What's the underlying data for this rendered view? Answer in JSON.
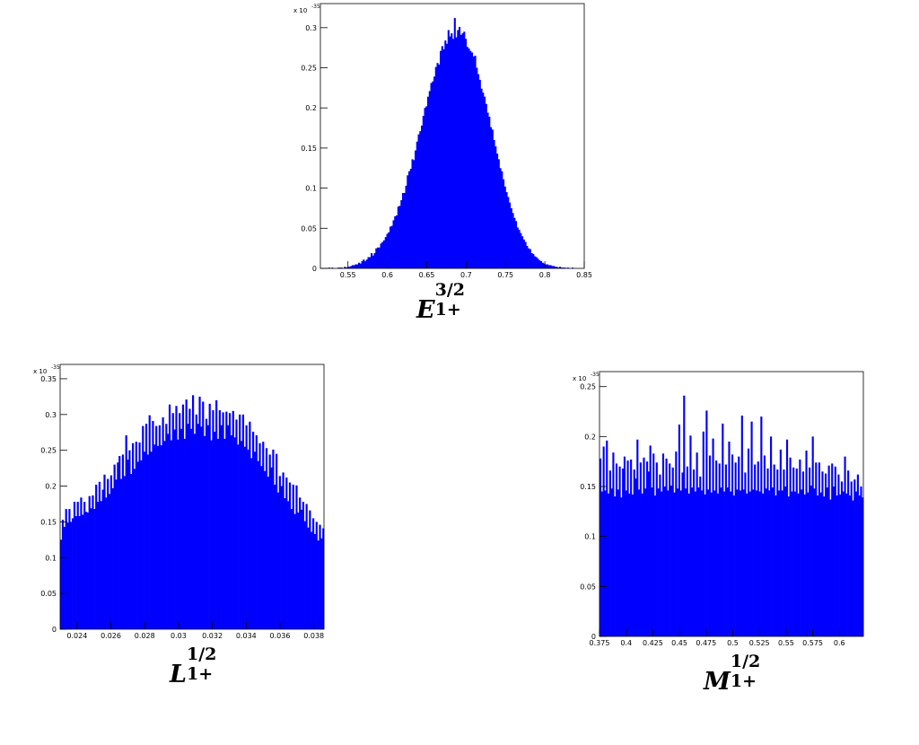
{
  "chart_data": [
    {
      "type": "bar",
      "multiplier": "x 10",
      "multiplier_exp": "-35",
      "caption": {
        "base": "E",
        "sup": "3/2",
        "sub": "1+"
      },
      "xlim": [
        0.515,
        0.85
      ],
      "ylim": [
        0,
        0.33
      ],
      "x_ticks": [
        "0.55",
        "0.6",
        "0.65",
        "0.7",
        "0.75",
        "0.8",
        "0.85"
      ],
      "y_ticks": [
        "0",
        "0.05",
        "0.1",
        "0.15",
        "0.2",
        "0.25",
        "0.3"
      ],
      "values": [
        0.0,
        0.0,
        0.0,
        0.0,
        0.0,
        0.001,
        0.0,
        0.001,
        0.0,
        0.0,
        0.0,
        0.001,
        0.001,
        0.001,
        0.0,
        0.002,
        0.001,
        0.002,
        0.002,
        0.003,
        0.004,
        0.004,
        0.005,
        0.005,
        0.007,
        0.006,
        0.009,
        0.011,
        0.009,
        0.011,
        0.014,
        0.014,
        0.019,
        0.016,
        0.019,
        0.025,
        0.026,
        0.026,
        0.031,
        0.033,
        0.035,
        0.039,
        0.043,
        0.045,
        0.052,
        0.053,
        0.06,
        0.065,
        0.066,
        0.077,
        0.078,
        0.085,
        0.094,
        0.094,
        0.103,
        0.116,
        0.121,
        0.124,
        0.136,
        0.135,
        0.147,
        0.158,
        0.167,
        0.171,
        0.178,
        0.19,
        0.2,
        0.202,
        0.214,
        0.221,
        0.231,
        0.233,
        0.239,
        0.251,
        0.256,
        0.254,
        0.271,
        0.277,
        0.273,
        0.284,
        0.28,
        0.297,
        0.289,
        0.293,
        0.286,
        0.312,
        0.288,
        0.297,
        0.301,
        0.291,
        0.293,
        0.295,
        0.286,
        0.276,
        0.274,
        0.271,
        0.269,
        0.264,
        0.265,
        0.25,
        0.242,
        0.235,
        0.224,
        0.219,
        0.214,
        0.205,
        0.194,
        0.189,
        0.176,
        0.173,
        0.16,
        0.152,
        0.143,
        0.136,
        0.125,
        0.121,
        0.111,
        0.102,
        0.095,
        0.089,
        0.082,
        0.075,
        0.069,
        0.063,
        0.059,
        0.051,
        0.048,
        0.044,
        0.04,
        0.036,
        0.033,
        0.028,
        0.025,
        0.024,
        0.019,
        0.018,
        0.015,
        0.014,
        0.012,
        0.01,
        0.009,
        0.007,
        0.006,
        0.005,
        0.005,
        0.004,
        0.004,
        0.003,
        0.003,
        0.002,
        0.002,
        0.001,
        0.002,
        0.001,
        0.001,
        0.001,
        0.0,
        0.001,
        0.0,
        0.0,
        0.001,
        0.0,
        0.0,
        0.0,
        0.0,
        0.0,
        0.0,
        0.0
      ]
    },
    {
      "type": "bar",
      "multiplier": "x 10",
      "multiplier_exp": "-35",
      "caption": {
        "base": "L",
        "sup": "1/2",
        "sub": "1+"
      },
      "xlim": [
        0.023,
        0.0386
      ],
      "ylim": [
        0,
        0.37
      ],
      "x_ticks": [
        "0.024",
        "0.026",
        "0.028",
        "0.03",
        "0.032",
        "0.034",
        "0.036",
        "0.038"
      ],
      "y_ticks": [
        "0",
        "0.05",
        "0.1",
        "0.15",
        "0.2",
        "0.25",
        "0.3",
        "0.35"
      ],
      "values": [
        0.125,
        0.153,
        0.143,
        0.168,
        0.149,
        0.168,
        0.15,
        0.155,
        0.178,
        0.158,
        0.178,
        0.158,
        0.184,
        0.16,
        0.178,
        0.164,
        0.163,
        0.186,
        0.169,
        0.187,
        0.168,
        0.202,
        0.178,
        0.206,
        0.179,
        0.195,
        0.216,
        0.184,
        0.21,
        0.189,
        0.215,
        0.197,
        0.23,
        0.209,
        0.233,
        0.242,
        0.21,
        0.244,
        0.214,
        0.271,
        0.237,
        0.25,
        0.217,
        0.26,
        0.224,
        0.262,
        0.234,
        0.261,
        0.236,
        0.284,
        0.248,
        0.287,
        0.244,
        0.299,
        0.248,
        0.291,
        0.258,
        0.284,
        0.256,
        0.285,
        0.257,
        0.296,
        0.263,
        0.287,
        0.273,
        0.314,
        0.264,
        0.302,
        0.279,
        0.312,
        0.265,
        0.302,
        0.28,
        0.314,
        0.266,
        0.321,
        0.287,
        0.308,
        0.28,
        0.327,
        0.273,
        0.3,
        0.287,
        0.325,
        0.283,
        0.318,
        0.27,
        0.294,
        0.285,
        0.315,
        0.264,
        0.306,
        0.276,
        0.32,
        0.266,
        0.306,
        0.285,
        0.303,
        0.266,
        0.304,
        0.285,
        0.302,
        0.271,
        0.305,
        0.268,
        0.293,
        0.258,
        0.3,
        0.263,
        0.3,
        0.255,
        0.285,
        0.251,
        0.29,
        0.239,
        0.276,
        0.248,
        0.271,
        0.235,
        0.26,
        0.228,
        0.262,
        0.221,
        0.253,
        0.213,
        0.244,
        0.226,
        0.251,
        0.202,
        0.245,
        0.191,
        0.214,
        0.2,
        0.219,
        0.183,
        0.212,
        0.179,
        0.205,
        0.168,
        0.202,
        0.161,
        0.201,
        0.163,
        0.184,
        0.167,
        0.178,
        0.151,
        0.175,
        0.142,
        0.166,
        0.136,
        0.155,
        0.133,
        0.15,
        0.124,
        0.146,
        0.127,
        0.141
      ]
    },
    {
      "type": "bar",
      "multiplier": "x 10",
      "multiplier_exp": "-35",
      "caption": {
        "base": "M",
        "sup": "1/2",
        "sub": "1+"
      },
      "xlim": [
        0.375,
        0.6225
      ],
      "ylim": [
        0,
        0.265
      ],
      "x_ticks": [
        "0.375",
        "0.4",
        "0.425",
        "0.45",
        "0.475",
        "0.5",
        "0.525",
        "0.55",
        "0.575",
        "0.6"
      ],
      "y_ticks": [
        "0",
        "0.05",
        "0.1",
        "0.15",
        "0.2",
        "0.25"
      ],
      "values": [
        0.178,
        0.145,
        0.19,
        0.146,
        0.196,
        0.143,
        0.166,
        0.148,
        0.184,
        0.14,
        0.173,
        0.147,
        0.17,
        0.139,
        0.168,
        0.18,
        0.146,
        0.176,
        0.143,
        0.177,
        0.142,
        0.167,
        0.158,
        0.197,
        0.147,
        0.174,
        0.143,
        0.179,
        0.148,
        0.175,
        0.165,
        0.191,
        0.149,
        0.183,
        0.141,
        0.174,
        0.148,
        0.162,
        0.145,
        0.183,
        0.15,
        0.178,
        0.146,
        0.173,
        0.151,
        0.169,
        0.144,
        0.185,
        0.148,
        0.212,
        0.146,
        0.164,
        0.241,
        0.148,
        0.17,
        0.143,
        0.201,
        0.149,
        0.167,
        0.145,
        0.184,
        0.149,
        0.16,
        0.146,
        0.205,
        0.142,
        0.226,
        0.147,
        0.181,
        0.144,
        0.198,
        0.146,
        0.176,
        0.143,
        0.173,
        0.149,
        0.213,
        0.145,
        0.172,
        0.149,
        0.195,
        0.145,
        0.182,
        0.141,
        0.174,
        0.147,
        0.18,
        0.146,
        0.221,
        0.147,
        0.164,
        0.143,
        0.188,
        0.145,
        0.215,
        0.147,
        0.172,
        0.146,
        0.175,
        0.145,
        0.22,
        0.143,
        0.181,
        0.148,
        0.168,
        0.146,
        0.2,
        0.149,
        0.172,
        0.141,
        0.167,
        0.146,
        0.187,
        0.146,
        0.167,
        0.15,
        0.197,
        0.14,
        0.179,
        0.145,
        0.169,
        0.145,
        0.168,
        0.143,
        0.177,
        0.147,
        0.165,
        0.142,
        0.186,
        0.144,
        0.169,
        0.151,
        0.2,
        0.148,
        0.174,
        0.141,
        0.174,
        0.144,
        0.165,
        0.14,
        0.163,
        0.149,
        0.171,
        0.137,
        0.173,
        0.15,
        0.17,
        0.141,
        0.162,
        0.142,
        0.155,
        0.145,
        0.18,
        0.143,
        0.166,
        0.141,
        0.155,
        0.136,
        0.157,
        0.145,
        0.162,
        0.141,
        0.15,
        0.139
      ]
    }
  ]
}
